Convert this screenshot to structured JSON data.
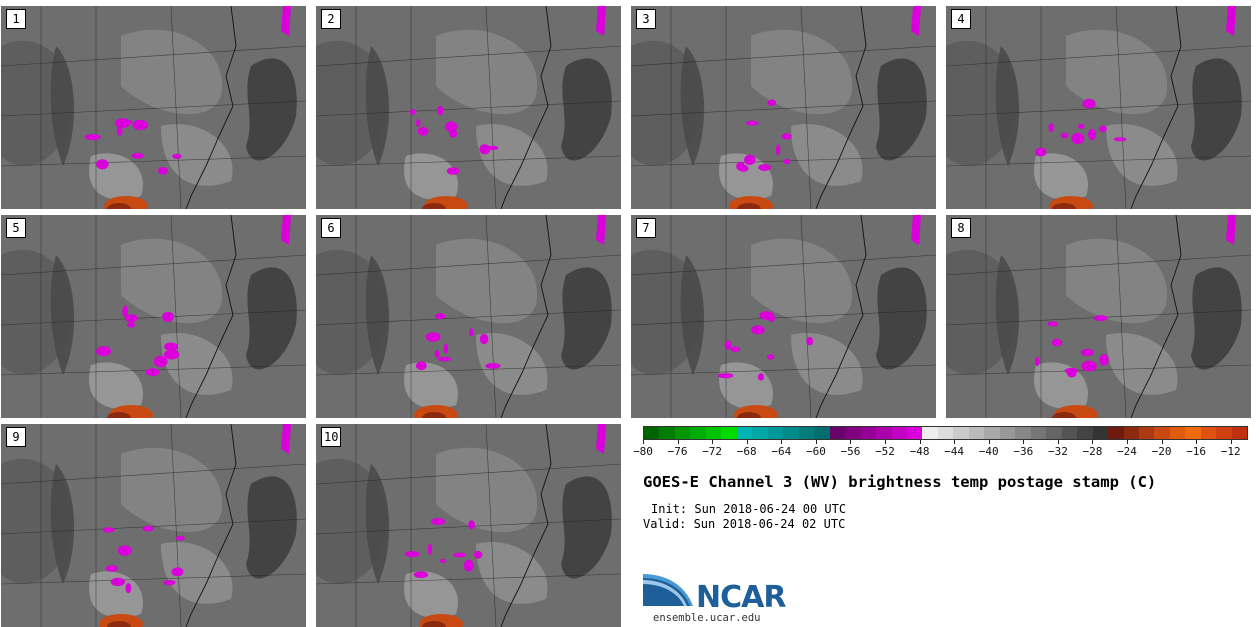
{
  "chart_data": {
    "type": "heatmap",
    "title": "GOES-E Channel 3 (WV) brightness temp postage stamp (C)",
    "init_text": "Init: Sun 2018-06-24 00 UTC",
    "valid_text": "Valid: Sun 2018-06-24 02 UTC",
    "units": "C",
    "panels": [
      {
        "label": "1"
      },
      {
        "label": "2"
      },
      {
        "label": "3"
      },
      {
        "label": "4"
      },
      {
        "label": "5"
      },
      {
        "label": "6"
      },
      {
        "label": "7"
      },
      {
        "label": "8"
      },
      {
        "label": "9"
      },
      {
        "label": "10"
      }
    ],
    "colorbar": {
      "range": [
        -80,
        -10
      ],
      "ticks": [
        -80,
        -76,
        -72,
        -68,
        -64,
        -60,
        -56,
        -52,
        -48,
        -44,
        -40,
        -36,
        -32,
        -28,
        -24,
        -20,
        -16,
        -12
      ],
      "colors": [
        "#006400",
        "#007d00",
        "#009600",
        "#00ad00",
        "#00c400",
        "#00dc00",
        "#00b4b4",
        "#00a6a6",
        "#009898",
        "#008a8a",
        "#007c7c",
        "#006e6e",
        "#6a006a",
        "#800080",
        "#960096",
        "#ad00ad",
        "#c400c4",
        "#db00db",
        "#ededed",
        "#dcdcdc",
        "#cbcbcb",
        "#bababa",
        "#a9a9a9",
        "#989898",
        "#878787",
        "#767676",
        "#656565",
        "#545454",
        "#444444",
        "#343434",
        "#6e1a0c",
        "#8c2a10",
        "#aa3a12",
        "#c84a12",
        "#e05a10",
        "#f06a10",
        "#e05010",
        "#d04010",
        "#c03010"
      ]
    }
  },
  "logo": {
    "name": "NCAR",
    "url": "ensemble.ucar.edu",
    "colors": {
      "blue": "#1f5f99",
      "light": "#4a9ad4"
    }
  }
}
